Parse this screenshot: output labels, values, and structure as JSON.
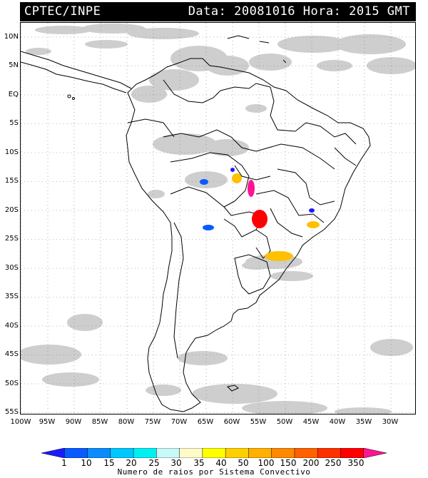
{
  "header": {
    "source": "CPTEC/INPE",
    "datetime": "Data: 20081016 Hora: 2015 GMT"
  },
  "axes": {
    "lat_labels": [
      "10N",
      "5N",
      "EQ",
      "5S",
      "10S",
      "15S",
      "20S",
      "25S",
      "30S",
      "35S",
      "40S",
      "45S",
      "50S",
      "55S"
    ],
    "lon_labels": [
      "100W",
      "95W",
      "90W",
      "85W",
      "80W",
      "75W",
      "70W",
      "65W",
      "60W",
      "55W",
      "50W",
      "45W",
      "40W",
      "35W",
      "30W"
    ]
  },
  "legend": {
    "ticks": [
      "1",
      "10",
      "15",
      "20",
      "25",
      "30",
      "35",
      "40",
      "50",
      "100",
      "150",
      "200",
      "250",
      "350"
    ],
    "caption": "Numero de raios por Sistema Convectivo",
    "colors": [
      "#1a1aff",
      "#0a5aff",
      "#0a8cff",
      "#00c8ff",
      "#00f0f0",
      "#c8f8f8",
      "#fffbc8",
      "#ffff00",
      "#ffd000",
      "#ffb000",
      "#ff8800",
      "#ff6000",
      "#ff3000",
      "#ff0000",
      "#ff1493"
    ]
  },
  "map_features": {
    "background_color": "#ffffff",
    "cloud_color": "#c9c9c9",
    "systems": [
      {
        "color": "#0a5aff"
      },
      {
        "color": "#0a5aff"
      },
      {
        "color": "#1a1aff"
      },
      {
        "color": "#ffc000"
      },
      {
        "color": "#ff1493"
      },
      {
        "color": "#ff0000"
      },
      {
        "color": "#ffc000"
      },
      {
        "color": "#ffc000"
      },
      {
        "color": "#1a1aff"
      }
    ]
  }
}
